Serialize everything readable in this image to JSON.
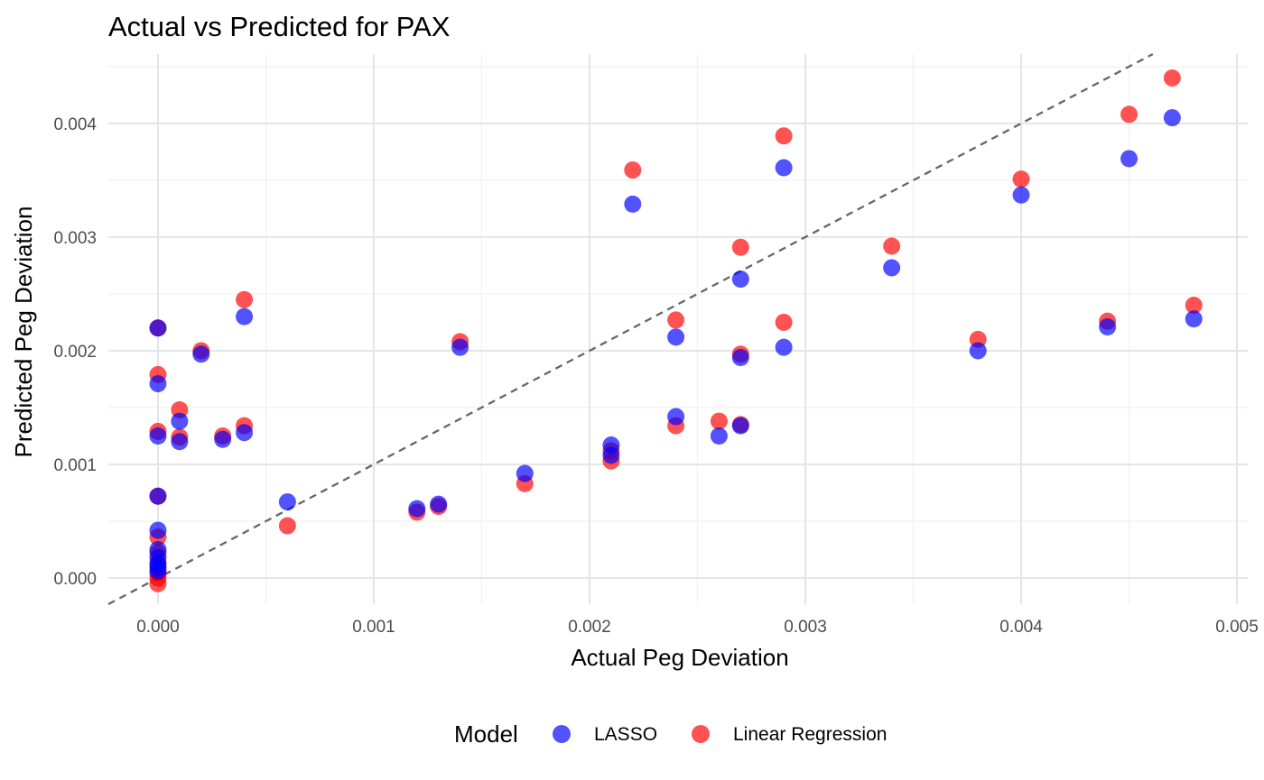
{
  "chart_data": {
    "type": "scatter",
    "title": "Actual vs Predicted for PAX",
    "xlabel": "Actual Peg Deviation",
    "ylabel": "Predicted Peg Deviation",
    "xlim": [
      -0.00023,
      0.00505
    ],
    "ylim": [
      -0.00023,
      0.00461
    ],
    "x_ticks": [
      0.0,
      0.001,
      0.002,
      0.003,
      0.004,
      0.005
    ],
    "x_tick_labels": [
      "0.000",
      "0.001",
      "0.002",
      "0.003",
      "0.004",
      "0.005"
    ],
    "y_ticks": [
      0.0,
      0.001,
      0.002,
      0.003,
      0.004
    ],
    "y_tick_labels": [
      "0.000",
      "0.001",
      "0.002",
      "0.003",
      "0.004"
    ],
    "grid": true,
    "reference_line": {
      "style": "dashed",
      "slope": 1,
      "intercept": 0,
      "color": "#666666"
    },
    "legend": {
      "title": "Model",
      "position": "bottom"
    },
    "series": [
      {
        "name": "Linear Regression",
        "color": "#ff0000",
        "points": [
          [
            0.0,
            0.0022
          ],
          [
            0.0,
            0.00179
          ],
          [
            0.0,
            0.00129
          ],
          [
            0.0,
            0.00072
          ],
          [
            0.0,
            0.00036
          ],
          [
            0.0,
            0.00022
          ],
          [
            0.0,
            0.00012
          ],
          [
            0.0,
            4e-05
          ],
          [
            0.0,
            0.0
          ],
          [
            0.0,
            -5e-05
          ],
          [
            0.0001,
            0.00148
          ],
          [
            0.0001,
            0.00124
          ],
          [
            0.0002,
            0.002
          ],
          [
            0.0003,
            0.00125
          ],
          [
            0.0004,
            0.00245
          ],
          [
            0.0004,
            0.00134
          ],
          [
            0.0006,
            0.00046
          ],
          [
            0.0012,
            0.00058
          ],
          [
            0.0013,
            0.00063
          ],
          [
            0.0014,
            0.00208
          ],
          [
            0.0017,
            0.00083
          ],
          [
            0.0021,
            0.00103
          ],
          [
            0.0021,
            0.00112
          ],
          [
            0.0022,
            0.00359
          ],
          [
            0.0024,
            0.00227
          ],
          [
            0.0024,
            0.00134
          ],
          [
            0.0026,
            0.00138
          ],
          [
            0.0027,
            0.00291
          ],
          [
            0.0027,
            0.00197
          ],
          [
            0.0027,
            0.00135
          ],
          [
            0.0029,
            0.00389
          ],
          [
            0.0029,
            0.00225
          ],
          [
            0.0034,
            0.00292
          ],
          [
            0.0038,
            0.0021
          ],
          [
            0.004,
            0.00351
          ],
          [
            0.0044,
            0.00226
          ],
          [
            0.0045,
            0.00408
          ],
          [
            0.0047,
            0.0044
          ],
          [
            0.0048,
            0.0024
          ]
        ]
      },
      {
        "name": "LASSO",
        "color": "#0000ff",
        "points": [
          [
            0.0,
            0.0022
          ],
          [
            0.0,
            0.00171
          ],
          [
            0.0,
            0.00125
          ],
          [
            0.0,
            0.00072
          ],
          [
            0.0,
            0.00042
          ],
          [
            0.0,
            0.00025
          ],
          [
            0.0,
            0.00018
          ],
          [
            0.0,
            0.00013
          ],
          [
            0.0,
            9e-05
          ],
          [
            0.0,
            6e-05
          ],
          [
            0.0001,
            0.00138
          ],
          [
            0.0001,
            0.0012
          ],
          [
            0.0002,
            0.00197
          ],
          [
            0.0003,
            0.00122
          ],
          [
            0.0004,
            0.0023
          ],
          [
            0.0004,
            0.00128
          ],
          [
            0.0006,
            0.00067
          ],
          [
            0.0012,
            0.00061
          ],
          [
            0.0013,
            0.00065
          ],
          [
            0.0014,
            0.00203
          ],
          [
            0.0017,
            0.00092
          ],
          [
            0.0021,
            0.00117
          ],
          [
            0.0021,
            0.00108
          ],
          [
            0.0022,
            0.00329
          ],
          [
            0.0024,
            0.00212
          ],
          [
            0.0024,
            0.00142
          ],
          [
            0.0026,
            0.00125
          ],
          [
            0.0027,
            0.00263
          ],
          [
            0.0027,
            0.00194
          ],
          [
            0.0027,
            0.00134
          ],
          [
            0.0029,
            0.00361
          ],
          [
            0.0029,
            0.00203
          ],
          [
            0.0034,
            0.00273
          ],
          [
            0.0038,
            0.002
          ],
          [
            0.004,
            0.00337
          ],
          [
            0.0044,
            0.00221
          ],
          [
            0.0045,
            0.00369
          ],
          [
            0.0047,
            0.00405
          ],
          [
            0.0048,
            0.00228
          ]
        ]
      }
    ]
  }
}
